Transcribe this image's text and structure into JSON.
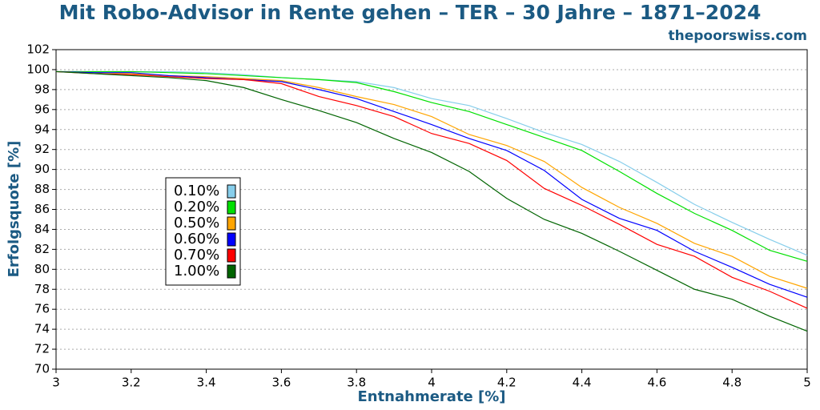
{
  "chart_data": {
    "type": "line",
    "title": "Mit Robo-Advisor in Rente gehen – TER – 30 Jahre – 1871–2024",
    "subtitle": "thepoorswiss.com",
    "x_label": "Entnahmerate [%]",
    "y_label": "Erfolgsquote [%]",
    "x": [
      3.0,
      3.1,
      3.2,
      3.3,
      3.4,
      3.5,
      3.6,
      3.7,
      3.8,
      3.9,
      4.0,
      4.1,
      4.2,
      4.3,
      4.4,
      4.5,
      4.6,
      4.7,
      4.8,
      4.9,
      5.0
    ],
    "xlim": [
      3,
      5
    ],
    "xticks": [
      3,
      3.2,
      3.4,
      3.6,
      3.8,
      4,
      4.2,
      4.4,
      4.6,
      4.8,
      5
    ],
    "ylim": [
      70,
      102
    ],
    "yticks": [
      70,
      72,
      74,
      76,
      78,
      80,
      82,
      84,
      86,
      88,
      90,
      92,
      94,
      96,
      98,
      100,
      102
    ],
    "grid": true,
    "legend": "left",
    "series": [
      {
        "name": "0.10%",
        "color": "#87ceeb",
        "values": [
          99.8,
          99.8,
          99.8,
          99.8,
          99.7,
          99.5,
          99.2,
          99.0,
          98.8,
          98.2,
          97.1,
          96.4,
          95.1,
          93.7,
          92.5,
          90.8,
          88.7,
          86.5,
          84.7,
          83.0,
          81.4
        ]
      },
      {
        "name": "0.20%",
        "color": "#00e000",
        "values": [
          99.8,
          99.8,
          99.8,
          99.7,
          99.6,
          99.4,
          99.2,
          99.0,
          98.7,
          97.8,
          96.7,
          95.8,
          94.5,
          93.2,
          91.9,
          89.8,
          87.6,
          85.6,
          83.9,
          81.9,
          80.8
        ]
      },
      {
        "name": "0.50%",
        "color": "#ffa500",
        "values": [
          99.8,
          99.7,
          99.6,
          99.4,
          99.3,
          99.1,
          98.9,
          98.2,
          97.3,
          96.5,
          95.3,
          93.5,
          92.4,
          90.8,
          88.2,
          86.2,
          84.6,
          82.6,
          81.3,
          79.3,
          78.1
        ]
      },
      {
        "name": "0.60%",
        "color": "#0000ff",
        "values": [
          99.8,
          99.7,
          99.7,
          99.4,
          99.2,
          99.0,
          98.8,
          98.0,
          97.1,
          95.8,
          94.5,
          93.1,
          91.9,
          89.9,
          87.0,
          85.1,
          83.9,
          81.8,
          80.2,
          78.5,
          77.2
        ]
      },
      {
        "name": "0.70%",
        "color": "#ff0000",
        "values": [
          99.8,
          99.6,
          99.5,
          99.3,
          99.1,
          99.0,
          98.6,
          97.3,
          96.4,
          95.3,
          93.6,
          92.6,
          90.9,
          88.1,
          86.4,
          84.5,
          82.5,
          81.3,
          79.2,
          77.8,
          76.1
        ]
      },
      {
        "name": "1.00%",
        "color": "#006400",
        "values": [
          99.8,
          99.6,
          99.4,
          99.2,
          98.9,
          98.2,
          97.0,
          95.9,
          94.7,
          93.1,
          91.7,
          89.8,
          87.1,
          85.0,
          83.6,
          81.8,
          79.9,
          78.0,
          77.0,
          75.3,
          73.8
        ]
      }
    ]
  }
}
